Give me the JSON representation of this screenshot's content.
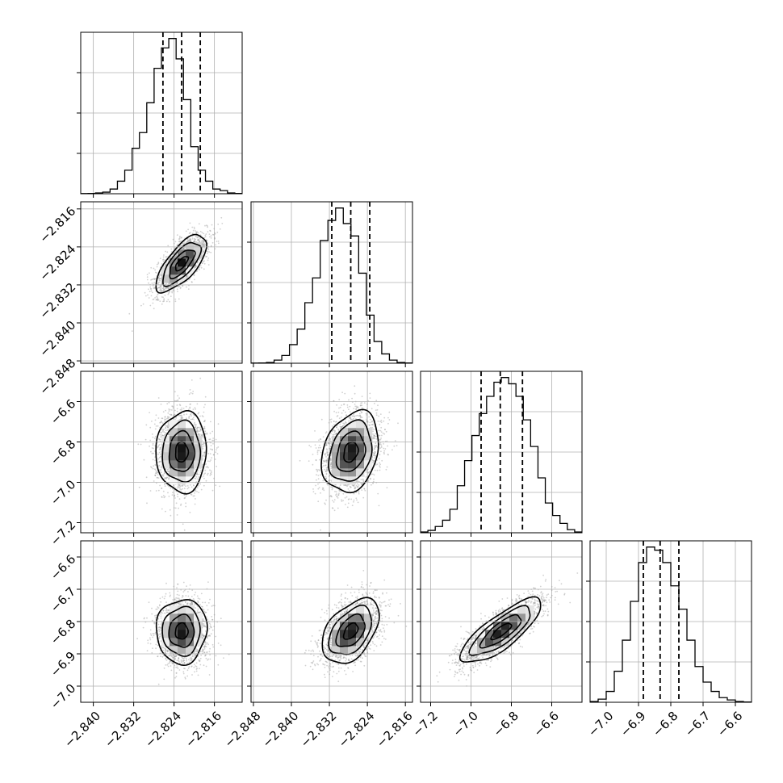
{
  "chart_data": {
    "type": "corner",
    "parameters": [
      {
        "index": 0,
        "range": [
          -2.8425,
          -2.8105
        ],
        "ticks": [
          -2.84,
          -2.832,
          -2.824,
          -2.816
        ],
        "tick_labels": [
          "−2.840",
          "−2.832",
          "−2.824",
          "−2.816"
        ],
        "mean": -2.8225,
        "sd": 0.0025,
        "quantiles": [
          -2.8262,
          -2.8225,
          -2.8188
        ],
        "hist": [
          1,
          2,
          5,
          10,
          30,
          80,
          150,
          290,
          390,
          580,
          800,
          930,
          990,
          860,
          600,
          300,
          150,
          80,
          30,
          20,
          5,
          2
        ]
      },
      {
        "index": 1,
        "range": [
          -2.8485,
          -2.8145
        ],
        "ticks": [
          -2.848,
          -2.84,
          -2.832,
          -2.824,
          -2.816
        ],
        "tick_labels": [
          "−2.848",
          "−2.840",
          "−2.832",
          "−2.824",
          "−2.816"
        ],
        "mean": -2.8275,
        "sd": 0.003,
        "quantiles": [
          -2.8315,
          -2.8275,
          -2.8235
        ],
        "hist": [
          1,
          2,
          5,
          20,
          50,
          120,
          220,
          390,
          550,
          790,
          920,
          1000,
          900,
          820,
          580,
          310,
          140,
          60,
          20,
          5,
          2
        ]
      },
      {
        "index": 2,
        "range": [
          -7.25,
          -6.45
        ],
        "ticks": [
          -7.2,
          -7.0,
          -6.8,
          -6.6
        ],
        "tick_labels": [
          "−7.2",
          "−7.0",
          "−6.8",
          "−6.6"
        ],
        "mean": -6.85,
        "sd": 0.1,
        "quantiles": [
          -6.95,
          -6.855,
          -6.745
        ],
        "hist": [
          5,
          15,
          40,
          80,
          150,
          300,
          460,
          620,
          760,
          870,
          960,
          990,
          950,
          870,
          720,
          550,
          350,
          190,
          110,
          60,
          20,
          5
        ]
      },
      {
        "index": 3,
        "range": [
          -7.05,
          -6.55
        ],
        "ticks": [
          -7.0,
          -6.9,
          -6.8,
          -6.7,
          -6.6
        ],
        "tick_labels": [
          "−7.0",
          "−6.9",
          "−6.8",
          "−6.7",
          "−6.6"
        ],
        "mean": -6.83,
        "sd": 0.05,
        "quantiles": [
          -6.885,
          -6.833,
          -6.775
        ],
        "hist": [
          5,
          20,
          70,
          200,
          400,
          650,
          900,
          1000,
          980,
          900,
          750,
          600,
          400,
          230,
          130,
          70,
          30,
          15,
          5,
          2
        ]
      }
    ],
    "correlations": [
      [
        0,
        1,
        0.7
      ],
      [
        0,
        2,
        0.03
      ],
      [
        1,
        2,
        0.25
      ],
      [
        0,
        3,
        0.03
      ],
      [
        1,
        3,
        0.45
      ],
      [
        2,
        3,
        0.8
      ]
    ],
    "contour_levels_sigma": [
      0.5,
      1.0,
      1.5,
      2.0
    ],
    "grid": true
  }
}
